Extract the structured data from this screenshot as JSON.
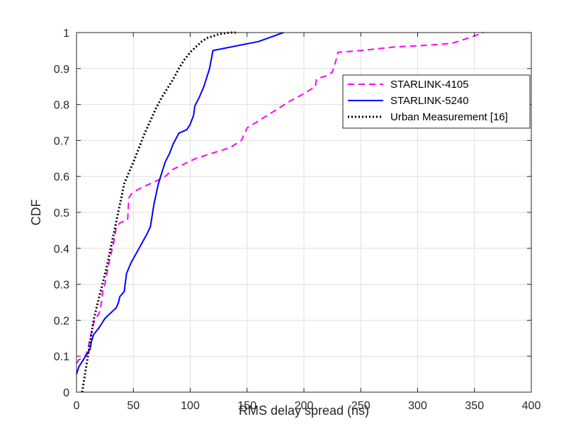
{
  "chart_data": {
    "type": "line",
    "title": "",
    "xlabel": "RMS delay spread (ns)",
    "ylabel": "CDF",
    "xlim": [
      0,
      400
    ],
    "ylim": [
      0,
      1
    ],
    "xticks": [
      0,
      50,
      100,
      150,
      200,
      250,
      300,
      350,
      400
    ],
    "yticks": [
      0,
      0.1,
      0.2,
      0.3,
      0.4,
      0.5,
      0.6,
      0.7,
      0.8,
      0.9,
      1
    ],
    "grid": true,
    "legend_position": "top-right",
    "series": [
      {
        "name": "STARLINK-4105",
        "color": "#ff00ff",
        "style": "dashed",
        "x": [
          0,
          2,
          5,
          8,
          10,
          12,
          14,
          16,
          18,
          20,
          22,
          23,
          25,
          28,
          30,
          33,
          35,
          38,
          45,
          46,
          48,
          52,
          58,
          65,
          72,
          78,
          85,
          95,
          105,
          115,
          125,
          135,
          140,
          145,
          148,
          150,
          158,
          168,
          178,
          188,
          200,
          210,
          211,
          215,
          220,
          225,
          228,
          230,
          250,
          280,
          310,
          330,
          345,
          358
        ],
        "y": [
          0.08,
          0.09,
          0.095,
          0.1,
          0.12,
          0.15,
          0.18,
          0.2,
          0.21,
          0.22,
          0.25,
          0.28,
          0.3,
          0.35,
          0.38,
          0.42,
          0.46,
          0.47,
          0.48,
          0.54,
          0.55,
          0.56,
          0.57,
          0.58,
          0.59,
          0.6,
          0.62,
          0.635,
          0.65,
          0.66,
          0.67,
          0.68,
          0.69,
          0.7,
          0.72,
          0.735,
          0.75,
          0.77,
          0.79,
          0.81,
          0.83,
          0.85,
          0.87,
          0.875,
          0.88,
          0.89,
          0.92,
          0.945,
          0.95,
          0.96,
          0.965,
          0.97,
          0.985,
          1.0
        ]
      },
      {
        "name": "STARLINK-5240",
        "color": "#0000ff",
        "style": "solid",
        "x": [
          0,
          2,
          5,
          8,
          12,
          13,
          15,
          20,
          25,
          30,
          35,
          37,
          38,
          42,
          44,
          48,
          55,
          62,
          65,
          66,
          68,
          70,
          72,
          75,
          78,
          82,
          85,
          90,
          97,
          100,
          103,
          104,
          108,
          112,
          115,
          117,
          120,
          160,
          182
        ],
        "y": [
          0.05,
          0.07,
          0.085,
          0.1,
          0.12,
          0.14,
          0.16,
          0.18,
          0.205,
          0.22,
          0.235,
          0.25,
          0.265,
          0.28,
          0.33,
          0.36,
          0.4,
          0.44,
          0.46,
          0.48,
          0.52,
          0.55,
          0.58,
          0.61,
          0.64,
          0.665,
          0.69,
          0.72,
          0.73,
          0.745,
          0.77,
          0.795,
          0.82,
          0.85,
          0.88,
          0.9,
          0.95,
          0.975,
          1.0
        ]
      },
      {
        "name": "Urban Measurement [16]",
        "color": "#000000",
        "style": "dotted",
        "x": [
          5,
          7,
          9,
          11,
          13,
          15,
          18,
          22,
          26,
          30,
          34,
          38,
          42,
          46,
          50,
          55,
          60,
          65,
          70,
          75,
          80,
          85,
          90,
          95,
          100,
          105,
          110,
          115,
          120,
          125,
          130,
          135,
          140
        ],
        "y": [
          0.0,
          0.04,
          0.08,
          0.12,
          0.16,
          0.2,
          0.24,
          0.29,
          0.34,
          0.4,
          0.46,
          0.52,
          0.58,
          0.61,
          0.64,
          0.68,
          0.72,
          0.755,
          0.79,
          0.82,
          0.845,
          0.87,
          0.9,
          0.925,
          0.945,
          0.96,
          0.975,
          0.985,
          0.99,
          0.995,
          0.998,
          1.0,
          1.0
        ]
      }
    ]
  }
}
